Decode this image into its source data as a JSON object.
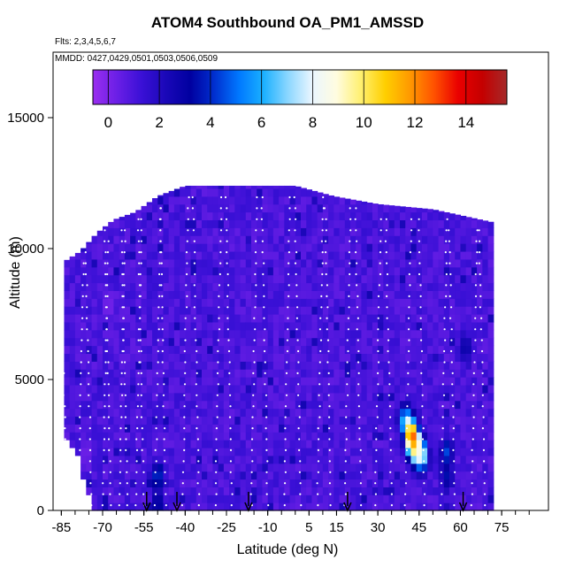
{
  "title": "ATOM4 Southbound OA_PM1_AMSSD",
  "flights_label": "Flts: 2,3,4,5,6,7",
  "dates_label": "MMDD: 0427,0429,0501,0503,0506,0509",
  "chart_data": {
    "type": "heatmap",
    "title": "ATOM4 Southbound OA_PM1_AMSSD",
    "xlabel": "Latitude (deg N)",
    "ylabel": "Altitude (m)",
    "xlim": [
      -88,
      92
    ],
    "ylim": [
      0,
      17500
    ],
    "x_ticks": [
      -85,
      -70,
      -55,
      -40,
      -25,
      -10,
      5,
      15,
      30,
      45,
      60,
      75
    ],
    "y_ticks": [
      0,
      5000,
      10000,
      15000
    ],
    "colorbar": {
      "range": [
        -0.6,
        15.6
      ],
      "ticks": [
        0,
        2,
        4,
        6,
        8,
        10,
        12,
        14
      ],
      "colors": [
        "#9a2eef",
        "#6a1fe6",
        "#3a10d6",
        "#1a08b8",
        "#0000a0",
        "#0030d0",
        "#0078ff",
        "#1ab0ff",
        "#8ad6ff",
        "#eaf6ff",
        "#fffce0",
        "#fff070",
        "#ffcf00",
        "#ff9a00",
        "#ff5200",
        "#ea0000",
        "#c40000",
        "#a52a2a"
      ]
    },
    "background_value": 1.0,
    "data_top_profile": [
      {
        "lat": -84,
        "alt": 9500
      },
      {
        "lat": -78,
        "alt": 9900
      },
      {
        "lat": -72,
        "alt": 10600
      },
      {
        "lat": -66,
        "alt": 11100
      },
      {
        "lat": -58,
        "alt": 11400
      },
      {
        "lat": -50,
        "alt": 12000
      },
      {
        "lat": -40,
        "alt": 12400
      },
      {
        "lat": 0,
        "alt": 12400
      },
      {
        "lat": 14,
        "alt": 12000
      },
      {
        "lat": 30,
        "alt": 11700
      },
      {
        "lat": 50,
        "alt": 11500
      },
      {
        "lat": 72,
        "alt": 11000
      }
    ],
    "data_bottom_profile": [
      {
        "lat": -84,
        "alt": 3000
      },
      {
        "lat": -80,
        "alt": 2500
      },
      {
        "lat": -77,
        "alt": 1300
      },
      {
        "lat": -74,
        "alt": 300
      },
      {
        "lat": -70,
        "alt": 0
      },
      {
        "lat": 72,
        "alt": 0
      }
    ],
    "hotspots": [
      {
        "lat": 40,
        "alt": 3500,
        "value": 6.5
      },
      {
        "lat": 42,
        "alt": 3000,
        "value": 11.5
      },
      {
        "lat": 43,
        "alt": 2600,
        "value": 14.5
      },
      {
        "lat": 44,
        "alt": 2300,
        "value": 10.0
      },
      {
        "lat": 46,
        "alt": 2100,
        "value": 8.5
      },
      {
        "lat": 55,
        "alt": 2200,
        "value": 4.5
      },
      {
        "lat": 55,
        "alt": 1300,
        "value": 3.5
      },
      {
        "lat": -50,
        "alt": 1300,
        "value": 4.5
      },
      {
        "lat": -50,
        "alt": 300,
        "value": 3.5
      },
      {
        "lat": -76,
        "alt": 2200,
        "value": 0.2
      },
      {
        "lat": -68,
        "alt": 7800,
        "value": 0.0
      },
      {
        "lat": 62,
        "alt": 6200,
        "value": 3.0
      }
    ],
    "airport_markers_lat": [
      -54,
      -43,
      -17,
      19,
      61
    ]
  }
}
